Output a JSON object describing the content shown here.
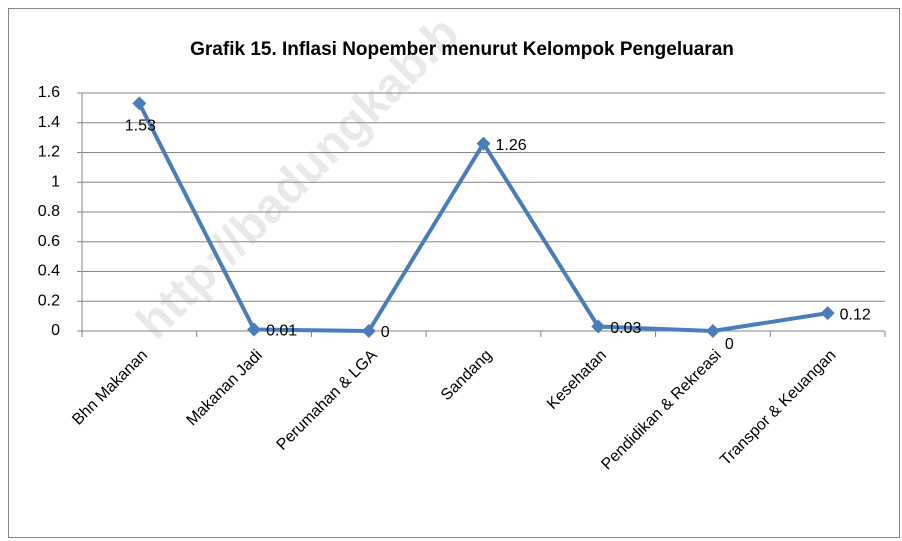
{
  "chart_data": {
    "type": "line",
    "title": "Grafik 15. Inflasi Nopember menurut Kelompok Pengeluaran",
    "watermark": "http://badungkab.b",
    "categories": [
      "Bhn Makanan",
      "Makanan Jadi",
      "Perumahan & LGA",
      "Sandang",
      "Kesehatan",
      "Pendidikan & Rekreasi",
      "Transpor & Keuangan"
    ],
    "series": [
      {
        "name": "Inflasi",
        "color": "#4a7ebb",
        "values": [
          1.53,
          0.01,
          0,
          1.26,
          0.03,
          0,
          0.12
        ]
      }
    ],
    "ylim": [
      0,
      1.6
    ],
    "yticks": [
      0,
      0.2,
      0.4,
      0.6,
      0.8,
      1,
      1.2,
      1.4,
      1.6
    ],
    "grid": true
  }
}
